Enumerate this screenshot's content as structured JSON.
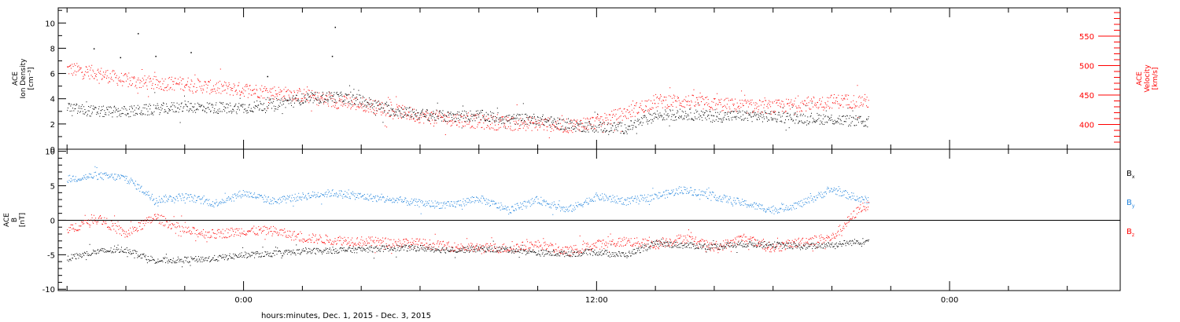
{
  "chart_data": [
    {
      "type": "scatter",
      "panel": "plasma",
      "ylabel_left": [
        "ACE",
        "Ion Density",
        "[cm⁻³]"
      ],
      "ylabel_right": [
        "ACE",
        "Velocity",
        "[km/s]"
      ],
      "ylim_left": [
        0,
        11.2
      ],
      "ylim_right": [
        358,
        598
      ],
      "yticks_left": [
        0,
        2,
        4,
        6,
        8,
        10
      ],
      "yticks_right": [
        400,
        450,
        500,
        550
      ],
      "series": [
        {
          "name": "Ion Density",
          "axis": "left",
          "color": "#000000",
          "x_hours": [
            -6,
            -5,
            -4,
            -3,
            -2,
            -1,
            0,
            1,
            2,
            3,
            4,
            5,
            6,
            7,
            8,
            9,
            10,
            11,
            12,
            13,
            14,
            15,
            16,
            17,
            18,
            19,
            20,
            21
          ],
          "y": [
            3.3,
            3.0,
            3.0,
            3.2,
            3.4,
            3.3,
            3.3,
            3.6,
            4.0,
            4.2,
            3.9,
            3.1,
            2.8,
            2.6,
            2.7,
            2.4,
            2.4,
            1.9,
            1.8,
            1.7,
            2.7,
            2.8,
            2.6,
            2.7,
            2.6,
            2.5,
            2.4,
            2.2
          ],
          "outliers": [
            {
              "x_hours": -5.1,
              "y": 8.0
            },
            {
              "x_hours": -4.2,
              "y": 7.3
            },
            {
              "x_hours": -3.6,
              "y": 9.2
            },
            {
              "x_hours": -3.0,
              "y": 7.4
            },
            {
              "x_hours": -1.8,
              "y": 7.7
            },
            {
              "x_hours": 0.8,
              "y": 5.8
            },
            {
              "x_hours": 3.1,
              "y": 9.7
            },
            {
              "x_hours": 3.0,
              "y": 7.4
            }
          ]
        },
        {
          "name": "Velocity",
          "axis": "right",
          "color": "#ff0000",
          "x_hours": [
            -6,
            -5,
            -4,
            -3,
            -2,
            -1,
            0,
            1,
            2,
            3,
            4,
            5,
            6,
            7,
            8,
            9,
            10,
            11,
            12,
            13,
            14,
            15,
            16,
            17,
            18,
            19,
            20,
            21
          ],
          "y": [
            495,
            488,
            475,
            470,
            470,
            463,
            460,
            455,
            450,
            440,
            435,
            425,
            415,
            410,
            405,
            402,
            402,
            398,
            405,
            420,
            440,
            440,
            435,
            432,
            430,
            435,
            440,
            440
          ]
        }
      ]
    },
    {
      "type": "scatter",
      "panel": "magnetic",
      "ylabel_left": [
        "ACE",
        "B",
        "[nT]"
      ],
      "ylim": [
        -10.2,
        10.3
      ],
      "yticks": [
        -10,
        -5,
        0,
        5,
        10
      ],
      "zero_line": true,
      "legend": [
        {
          "label": "B",
          "sub": "x",
          "color": "#000000"
        },
        {
          "label": "B",
          "sub": "y",
          "color": "#1f82dc"
        },
        {
          "label": "B",
          "sub": "z",
          "color": "#ff0000"
        }
      ],
      "series": [
        {
          "name": "Bx",
          "color": "#000000",
          "x_hours": [
            -6,
            -5,
            -4,
            -3,
            -2,
            -1,
            0,
            1,
            2,
            3,
            4,
            5,
            6,
            7,
            8,
            9,
            10,
            11,
            12,
            13,
            14,
            15,
            16,
            17,
            18,
            19,
            20,
            21
          ],
          "y": [
            -5.5,
            -4.5,
            -4.2,
            -5.8,
            -5.7,
            -5.5,
            -5.0,
            -4.8,
            -4.5,
            -4.3,
            -4.2,
            -4.0,
            -4.0,
            -4.3,
            -4.1,
            -4.2,
            -4.7,
            -4.8,
            -4.6,
            -5.0,
            -3.3,
            -3.6,
            -3.8,
            -3.4,
            -3.5,
            -3.8,
            -3.5,
            -3.0
          ]
        },
        {
          "name": "By",
          "color": "#1f82dc",
          "x_hours": [
            -6,
            -5,
            -4,
            -3,
            -2,
            -1,
            0,
            1,
            2,
            3,
            4,
            5,
            6,
            7,
            8,
            9,
            10,
            11,
            12,
            13,
            14,
            15,
            16,
            17,
            18,
            19,
            20,
            21
          ],
          "y": [
            6.0,
            6.5,
            6.2,
            3.0,
            3.5,
            2.5,
            4.0,
            2.8,
            3.5,
            4.0,
            3.5,
            3.0,
            2.5,
            2.2,
            3.2,
            1.5,
            3.0,
            1.5,
            3.5,
            2.8,
            3.5,
            4.5,
            3.5,
            2.5,
            1.5,
            2.5,
            4.5,
            3.0
          ]
        },
        {
          "name": "Bz",
          "color": "#ff0000",
          "x_hours": [
            -6,
            -5,
            -4,
            -3,
            -2,
            -1,
            0,
            1,
            2,
            3,
            4,
            5,
            6,
            7,
            8,
            9,
            10,
            11,
            12,
            13,
            14,
            15,
            16,
            17,
            18,
            19,
            20,
            21
          ],
          "y": [
            -1.5,
            0.5,
            -2.0,
            0.5,
            -1.5,
            -2.0,
            -1.5,
            -1.5,
            -2.5,
            -2.8,
            -3.0,
            -3.2,
            -3.3,
            -3.8,
            -4.0,
            -4.0,
            -3.5,
            -4.5,
            -3.5,
            -3.0,
            -3.5,
            -2.5,
            -4.0,
            -2.5,
            -4.0,
            -3.0,
            -2.5,
            2.0
          ]
        }
      ]
    }
  ],
  "x_axis": {
    "xlim_hours": [
      -6.3,
      29.8
    ],
    "tick_labels": [
      {
        "hours": 0,
        "label": "0:00"
      },
      {
        "hours": 12,
        "label": "12:00"
      },
      {
        "hours": 24,
        "label": "0:00"
      }
    ],
    "minor_step_hours": 2,
    "xlabel": "hours:minutes, Dec.  1, 2015 - Dec.  3, 2015"
  }
}
